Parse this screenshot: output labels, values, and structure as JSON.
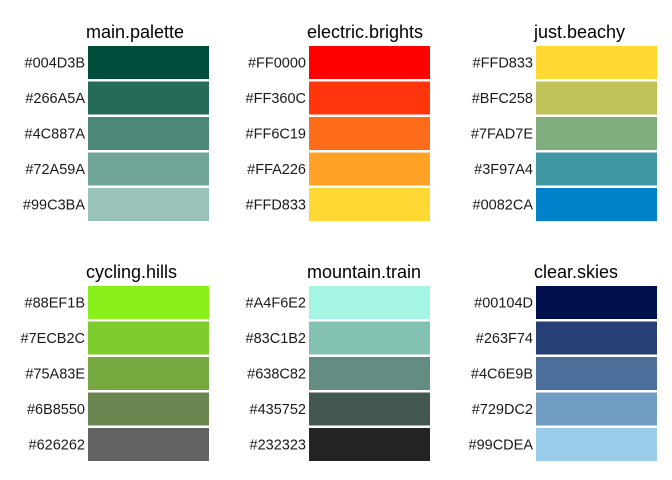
{
  "chart_data": {
    "type": "table",
    "panels": [
      {
        "name": "main.palette",
        "colors": [
          "#004D3B",
          "#266A5A",
          "#4C887A",
          "#72A59A",
          "#99C3BA"
        ]
      },
      {
        "name": "electric.brights",
        "colors": [
          "#FF0000",
          "#FF360C",
          "#FF6C19",
          "#FFA226",
          "#FFD833"
        ]
      },
      {
        "name": "just.beachy",
        "colors": [
          "#FFD833",
          "#BFC258",
          "#7FAD7E",
          "#3F97A4",
          "#0082CA"
        ]
      },
      {
        "name": "cycling.hills",
        "colors": [
          "#88EF1B",
          "#7ECB2C",
          "#75A83E",
          "#6B8550",
          "#626262"
        ]
      },
      {
        "name": "mountain.train",
        "colors": [
          "#A4F6E2",
          "#83C1B2",
          "#638C82",
          "#435752",
          "#232323"
        ]
      },
      {
        "name": "clear.skies",
        "colors": [
          "#00104D",
          "#263F74",
          "#4C6E9B",
          "#729DC2",
          "#99CDEA"
        ]
      }
    ]
  }
}
